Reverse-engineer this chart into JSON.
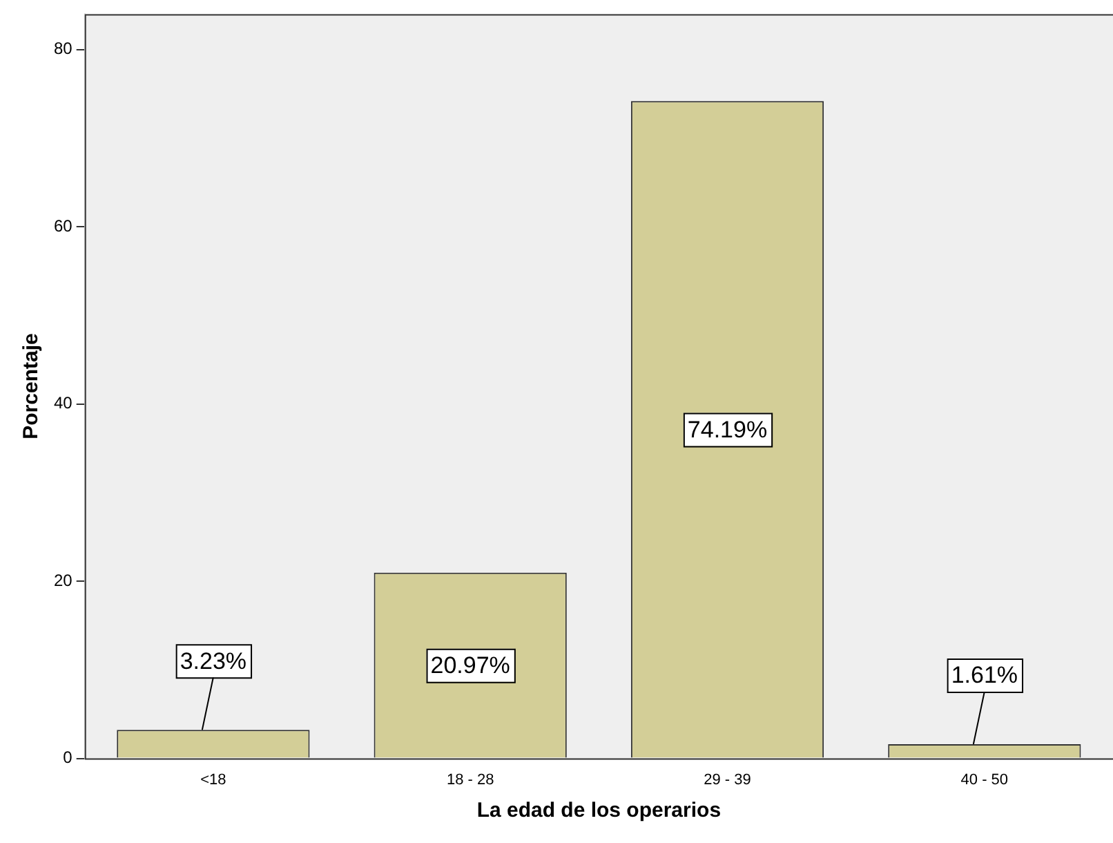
{
  "chart_data": {
    "type": "bar",
    "xlabel": "La edad de los operarios",
    "ylabel": "Porcentaje",
    "categories": [
      "<18",
      "18 - 28",
      "29 - 39",
      "40 - 50"
    ],
    "values": [
      3.23,
      20.97,
      74.19,
      1.61
    ],
    "value_labels": [
      "3.23%",
      "20.97%",
      "74.19%",
      "1.61%"
    ],
    "color": "#d3ce97",
    "ylim": [
      0,
      84
    ],
    "yticks": [
      0,
      20,
      40,
      60,
      80
    ],
    "grid": false,
    "legend": false
  }
}
